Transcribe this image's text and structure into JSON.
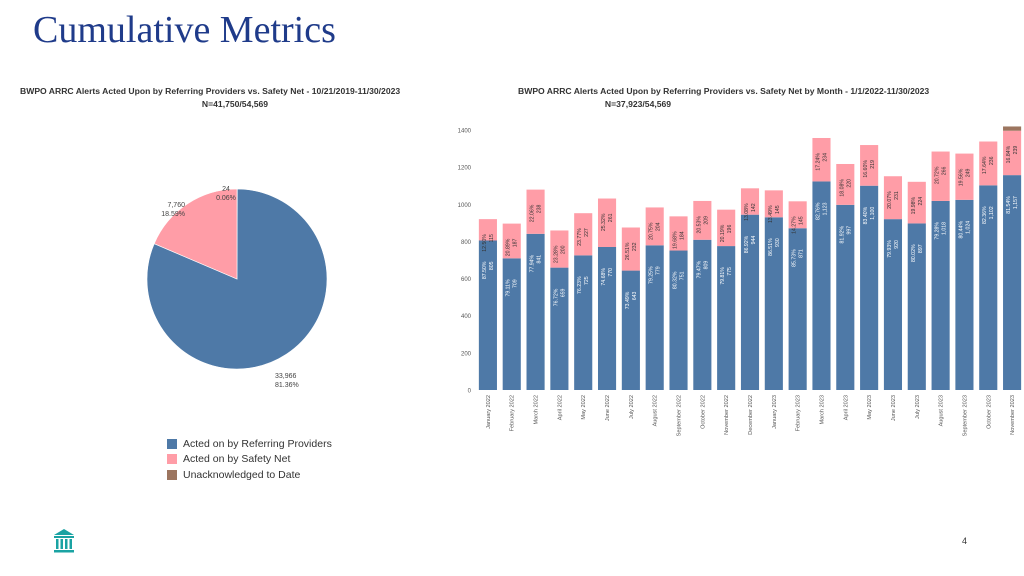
{
  "slide": {
    "title": "Cumulative Metrics",
    "page_number": "4"
  },
  "colors": {
    "referring": "#4e79a7",
    "safety_net": "#ff9da7",
    "unacknowledged": "#9c755f",
    "title": "#1f3b8a",
    "logo": "#1aa3a3"
  },
  "legend": {
    "items": [
      {
        "label": "Acted on by Referring Providers",
        "color": "#4e79a7"
      },
      {
        "label": "Acted on by Safety Net",
        "color": "#ff9da7"
      },
      {
        "label": "Unacknowledged to Date",
        "color": "#9c755f"
      }
    ]
  },
  "chart_data": [
    {
      "type": "pie",
      "title": "BWPO ARRC Alerts Acted Upon by Referring Providers vs. Safety Net - 10/21/2019-11/30/2023",
      "subtitle": "N=41,750/54,569",
      "slices": [
        {
          "name": "Acted on by Referring Providers",
          "value": 33966,
          "value_label": "33,966",
          "pct_label": "81.36%",
          "color": "#4e79a7"
        },
        {
          "name": "Acted on by Safety Net",
          "value": 7760,
          "value_label": "7,760",
          "pct_label": "18.59%",
          "color": "#ff9da7"
        },
        {
          "name": "Unacknowledged to Date",
          "value": 24,
          "value_label": "24",
          "pct_label": "0.06%",
          "color": "#9c755f"
        }
      ]
    },
    {
      "type": "bar",
      "stacked": true,
      "title": "BWPO ARRC Alerts Acted Upon by Referring Providers vs. Safety Net by Month - 1/1/2022-11/30/2023",
      "subtitle": "N=37,923/54,569",
      "ylim": [
        0,
        1400
      ],
      "yticks": [
        0,
        200,
        400,
        600,
        800,
        1000,
        1200,
        1400
      ],
      "categories": [
        "January 2022",
        "February 2022",
        "March 2022",
        "April 2022",
        "May 2022",
        "June 2022",
        "July 2022",
        "August 2022",
        "September 2022",
        "October 2022",
        "November 2022",
        "December 2022",
        "January 2023",
        "February 2023",
        "March 2023",
        "April 2023",
        "May 2023",
        "June 2023",
        "July 2023",
        "August 2023",
        "September 2023",
        "October 2023",
        "November 2023"
      ],
      "series": [
        {
          "name": "Acted on by Referring Providers",
          "color": "#4e79a7",
          "values": [
            805,
            709,
            841,
            659,
            725,
            770,
            643,
            779,
            751,
            809,
            775,
            944,
            930,
            871,
            1123,
            997,
            1100,
            920,
            897,
            1018,
            1024,
            1102,
            1157
          ],
          "labels": [
            "87.50%",
            "79.11%",
            "77.94%",
            "76.72%",
            "76.23%",
            "74.68%",
            "73.49%",
            "79.25%",
            "80.32%",
            "79.47%",
            "79.81%",
            "86.92%",
            "86.51%",
            "85.73%",
            "82.76%",
            "81.92%",
            "83.40%",
            "79.93%",
            "80.02%",
            "79.28%",
            "80.44%",
            "82.36%",
            "81.54%"
          ]
        },
        {
          "name": "Acted on by Safety Net",
          "color": "#ff9da7",
          "values": [
            115,
            187,
            238,
            200,
            227,
            261,
            232,
            204,
            184,
            209,
            196,
            142,
            145,
            145,
            234,
            220,
            219,
            231,
            224,
            266,
            249,
            236,
            239
          ],
          "labels": [
            "12.50%",
            "20.89%",
            "22.06%",
            "23.28%",
            "23.77%",
            "25.32%",
            "26.51%",
            "20.75%",
            "19.68%",
            "20.53%",
            "20.19%",
            "13.08%",
            "13.49%",
            "14.27%",
            "17.24%",
            "18.08%",
            "16.60%",
            "20.07%",
            "19.98%",
            "20.72%",
            "19.56%",
            "17.64%",
            "16.84%"
          ]
        },
        {
          "name": "Unacknowledged to Date",
          "color": "#9c755f",
          "values": [
            0,
            0,
            0,
            0,
            0,
            0,
            0,
            0,
            0,
            0,
            0,
            0,
            0,
            0,
            0,
            0,
            0,
            0,
            0,
            0,
            0,
            0,
            23
          ],
          "labels": [
            "",
            "",
            "",
            "",
            "",
            "",
            "",
            "",
            "",
            "",
            "",
            "",
            "",
            "",
            "",
            "",
            "",
            "",
            "",
            "",
            "",
            "",
            ""
          ]
        }
      ]
    }
  ]
}
